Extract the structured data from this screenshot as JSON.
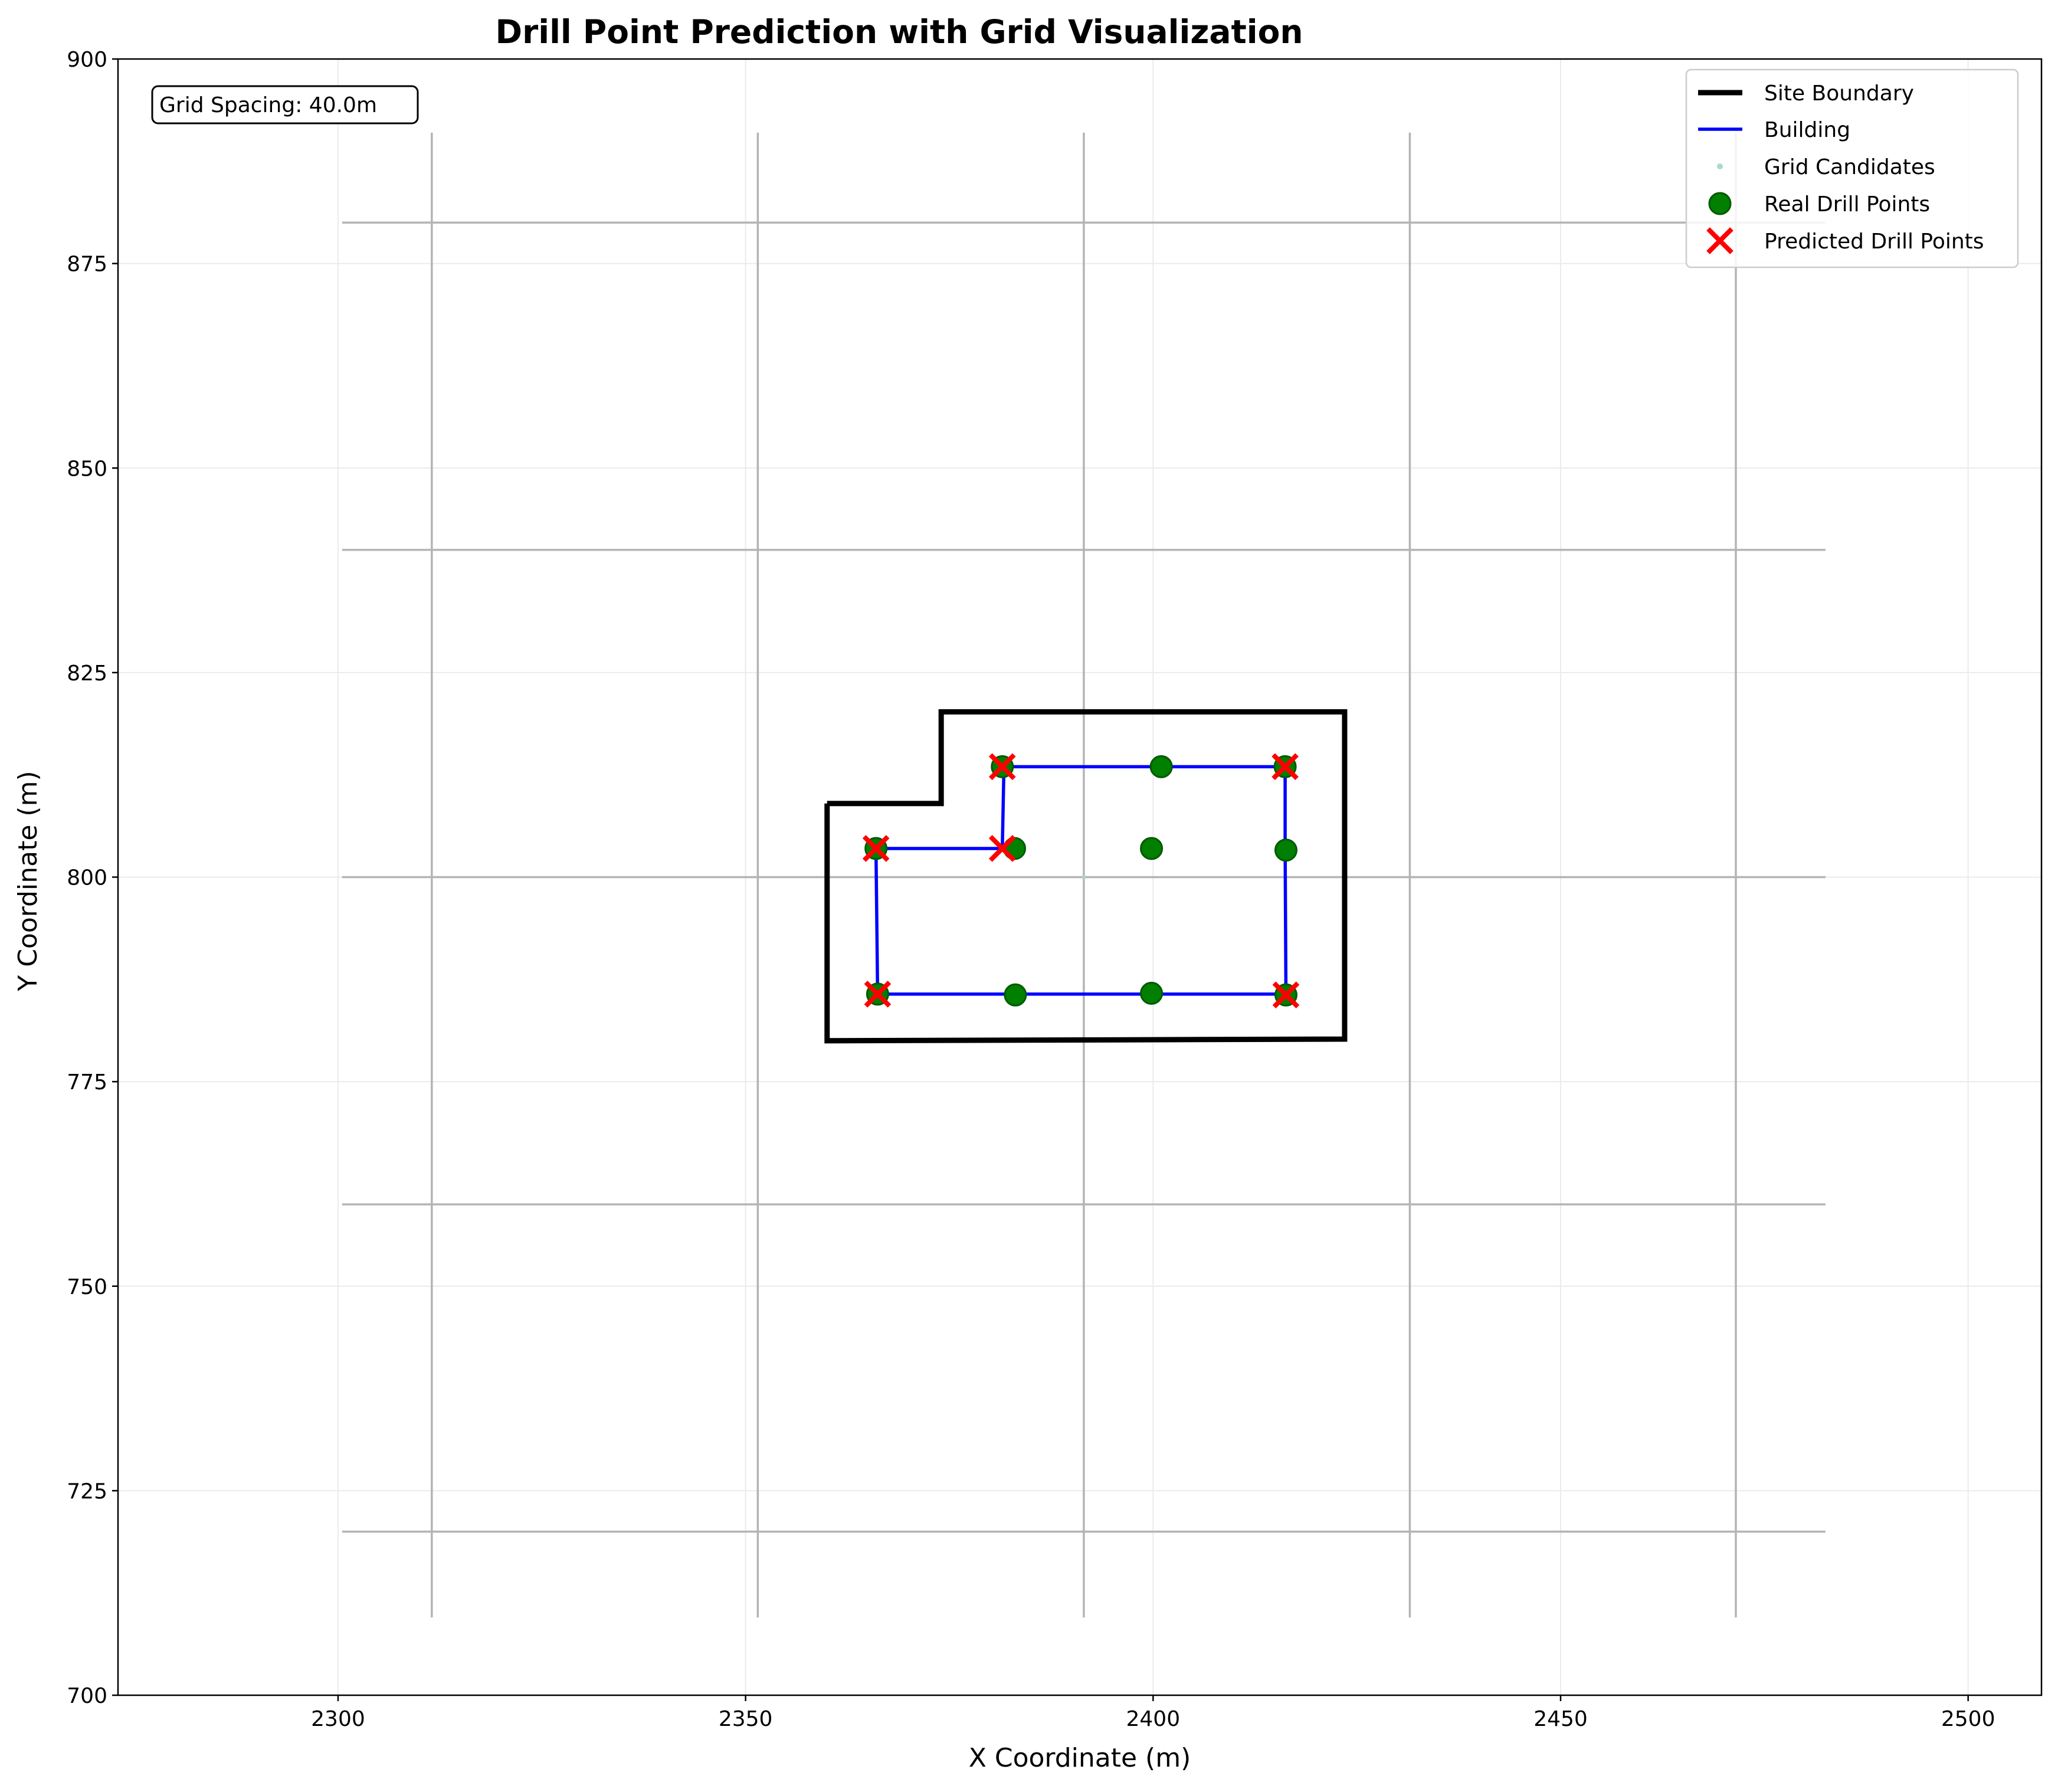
{
  "chart_data": {
    "type": "scatter",
    "title": "Drill Point Prediction with Grid Visualization",
    "xlabel": "X Coordinate (m)",
    "ylabel": "Y Coordinate (m)",
    "xlim": [
      2273,
      2509
    ],
    "ylim": [
      700,
      900
    ],
    "x_ticks": [
      2300,
      2350,
      2400,
      2450,
      2500
    ],
    "y_ticks": [
      700,
      725,
      750,
      775,
      800,
      825,
      850,
      875,
      900
    ],
    "grid": true,
    "legend_position": "top-right",
    "annotation": "Grid Spacing: 40.0m",
    "grid_lines": {
      "vertical_x": [
        2311.5,
        2351.5,
        2391.5,
        2431.5,
        2471.5
      ],
      "vertical_y_range": [
        709.5,
        891
      ],
      "horizontal_y": [
        720,
        760,
        800,
        840,
        880
      ],
      "horizontal_x_range": [
        2300.5,
        2482.5
      ]
    },
    "series": [
      {
        "name": "Site Boundary",
        "kind": "line",
        "color": "#000000",
        "points": [
          [
            2360,
            809
          ],
          [
            2374,
            809
          ],
          [
            2374,
            820.2
          ],
          [
            2423.5,
            820.2
          ],
          [
            2423.5,
            780.2
          ],
          [
            2360,
            780
          ],
          [
            2360,
            809
          ]
        ]
      },
      {
        "name": "Building",
        "kind": "line",
        "color": "#0000ff",
        "points": [
          [
            2366,
            803.5
          ],
          [
            2381.5,
            803.5
          ],
          [
            2381.7,
            813.5
          ],
          [
            2416.2,
            813.5
          ],
          [
            2416.2,
            803.5
          ],
          [
            2416.3,
            785.7
          ],
          [
            2366.2,
            785.7
          ],
          [
            2366,
            803.5
          ]
        ]
      },
      {
        "name": "Grid Candidates",
        "kind": "scatter",
        "color": "#a8dcc8",
        "points": [
          [
            2391.5,
            800
          ]
        ]
      },
      {
        "name": "Real Drill Points",
        "kind": "scatter",
        "color": "#007f00",
        "points": [
          [
            2366,
            803.5
          ],
          [
            2381.5,
            813.5
          ],
          [
            2383,
            803.5
          ],
          [
            2401,
            813.5
          ],
          [
            2399.8,
            803.5
          ],
          [
            2416.2,
            813.5
          ],
          [
            2416.3,
            803.3
          ],
          [
            2366.2,
            785.7
          ],
          [
            2383.1,
            785.6
          ],
          [
            2399.8,
            785.8
          ],
          [
            2416.3,
            785.6
          ]
        ]
      },
      {
        "name": "Predicted Drill Points",
        "kind": "scatter",
        "color": "#ff0000",
        "points": [
          [
            2366,
            803.5
          ],
          [
            2381.5,
            813.5
          ],
          [
            2381.5,
            803.5
          ],
          [
            2416.2,
            813.5
          ],
          [
            2366.2,
            785.7
          ],
          [
            2416.3,
            785.6
          ]
        ]
      }
    ]
  }
}
